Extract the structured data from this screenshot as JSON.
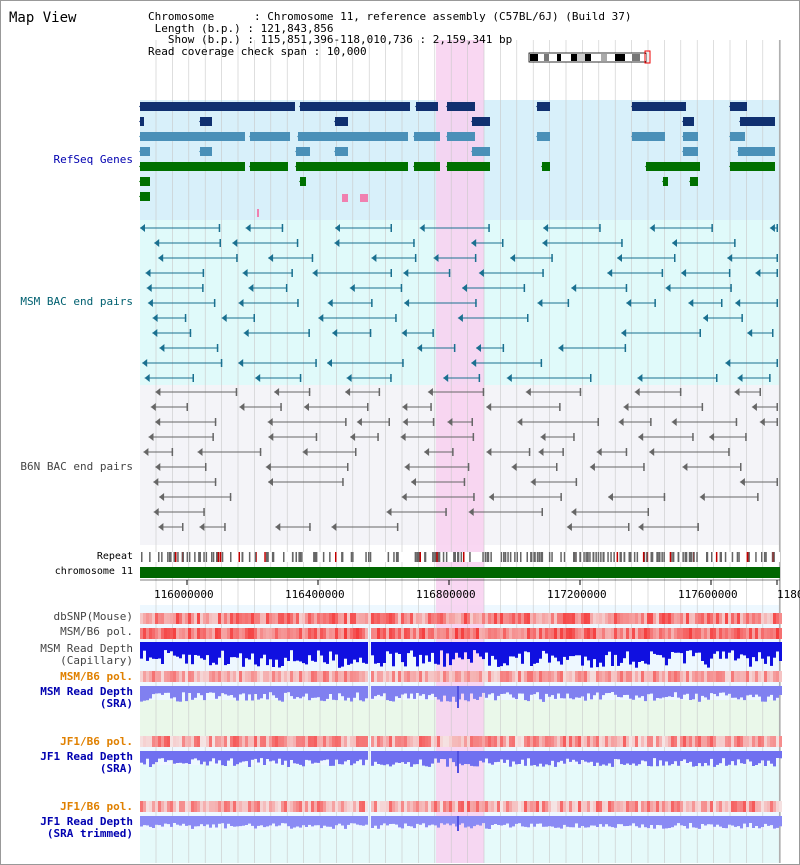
{
  "map_title": "Map View",
  "info": {
    "chromosome_label": "Chromosome",
    "chromosome_value": "Chromosome 11, reference assembly (C57BL/6J) (Build 37)",
    "length_label": "Length (b.p.)",
    "length_value": "121,843,856",
    "show_label": "Show (b.p.)",
    "show_value": "115,851,396-118,010,736 : 2,159,341 bp",
    "coverage_label": "Read coverage check span",
    "coverage_value": "10,000"
  },
  "tracks": {
    "refseq": "RefSeq Genes",
    "msm_bac": "MSM BAC end pairs",
    "b6n_bac": "B6N BAC end pairs",
    "repeat": "Repeat",
    "chromosome": "chromosome 11",
    "dbsnp": "dbSNP(Mouse)",
    "msm_b6_pol_1": "MSM/B6 pol.",
    "msm_read_depth_cap": "MSM Read Depth\n(Capillary)",
    "msm_b6_pol_2": "MSM/B6 pol.",
    "msm_read_depth_sra": "MSM Read Depth\n(SRA)",
    "jf1_b6_pol_1": "JF1/B6 pol.",
    "jf1_read_depth_sra": "JF1 Read Depth\n(SRA)",
    "jf1_b6_pol_2": "JF1/B6 pol.",
    "jf1_read_depth_trim": "JF1 Read Depth\n(SRA trimmed)"
  },
  "axis": {
    "ticks": [
      "116000000",
      "116400000",
      "116800000",
      "117200000",
      "117600000",
      "1180"
    ]
  },
  "colors": {
    "label_blue": "#0000b0",
    "label_teal": "#006070",
    "label_gray": "#444444",
    "label_orange": "#e08000",
    "refseq_bg": "#d8f0fa",
    "msm_bg": "#e0fafa",
    "b6n_bg": "#f4f4f8",
    "highlight": "#f8d0f0",
    "chrom_green": "#006600",
    "depth_blue": "#0000e0"
  }
}
